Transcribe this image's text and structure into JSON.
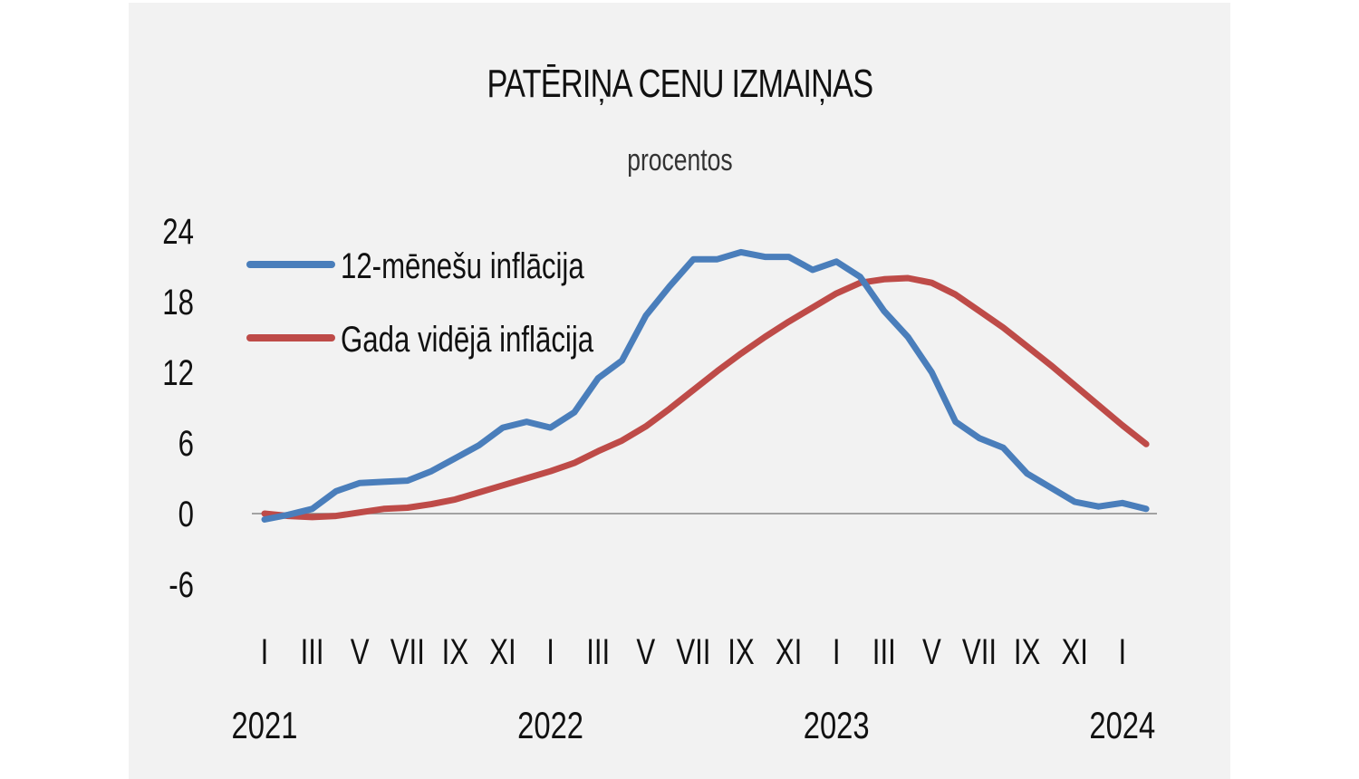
{
  "chart": {
    "title": "PATĒRIŅA CENU IZMAIŅAS",
    "subtitle": "procentos"
  },
  "legend": [
    {
      "label": "12-mēnešu inflācija",
      "color": "#4a7ebb"
    },
    {
      "label": "Gada vidējā inflācija",
      "color": "#be4b48"
    }
  ],
  "y_ticks": [
    "24",
    "18",
    "12",
    "6",
    "0",
    "-6"
  ],
  "x_month_ticks": [
    "I",
    "III",
    "V",
    "VII",
    "IX",
    "XI",
    "I",
    "III",
    "V",
    "VII",
    "IX",
    "XI",
    "I",
    "III",
    "V",
    "VII",
    "IX",
    "XI",
    "I"
  ],
  "x_year_labels": [
    "2021",
    "2022",
    "2023",
    "2024"
  ],
  "chart_data": {
    "type": "line",
    "title": "PATĒRIŅA CENU IZMAIŅAS",
    "subtitle": "procentos",
    "xlabel": "",
    "ylabel": "procentos",
    "ylim": [
      -6,
      24
    ],
    "yticks": [
      -6,
      0,
      6,
      12,
      18,
      24
    ],
    "grid": false,
    "legend_position": "upper left",
    "x": [
      "2021-01",
      "2021-02",
      "2021-03",
      "2021-04",
      "2021-05",
      "2021-06",
      "2021-07",
      "2021-08",
      "2021-09",
      "2021-10",
      "2021-11",
      "2021-12",
      "2022-01",
      "2022-02",
      "2022-03",
      "2022-04",
      "2022-05",
      "2022-06",
      "2022-07",
      "2022-08",
      "2022-09",
      "2022-10",
      "2022-11",
      "2022-12",
      "2023-01",
      "2023-02",
      "2023-03",
      "2023-04",
      "2023-05",
      "2023-06",
      "2023-07",
      "2023-08",
      "2023-09",
      "2023-10",
      "2023-11",
      "2023-12",
      "2024-01",
      "2024-02"
    ],
    "series": [
      {
        "name": "12-mēnešu inflācija",
        "color": "#4a7ebb",
        "values": [
          -0.5,
          -0.1,
          0.4,
          1.9,
          2.6,
          2.7,
          2.8,
          3.6,
          4.7,
          5.8,
          7.3,
          7.8,
          7.3,
          8.6,
          11.5,
          13.0,
          16.8,
          19.3,
          21.6,
          21.6,
          22.2,
          21.8,
          21.8,
          20.7,
          21.4,
          20.1,
          17.2,
          15.0,
          12.0,
          7.8,
          6.4,
          5.6,
          3.4,
          2.2,
          1.0,
          0.6,
          0.9,
          0.4
        ]
      },
      {
        "name": "Gada vidējā inflācija",
        "color": "#be4b48",
        "values": [
          0.0,
          -0.2,
          -0.3,
          -0.2,
          0.1,
          0.4,
          0.5,
          0.8,
          1.2,
          1.8,
          2.4,
          3.0,
          3.6,
          4.3,
          5.3,
          6.2,
          7.4,
          8.9,
          10.5,
          12.1,
          13.6,
          15.0,
          16.3,
          17.5,
          18.7,
          19.6,
          19.9,
          20.0,
          19.6,
          18.6,
          17.2,
          15.8,
          14.2,
          12.6,
          10.9,
          9.2,
          7.5,
          5.9
        ]
      }
    ]
  }
}
